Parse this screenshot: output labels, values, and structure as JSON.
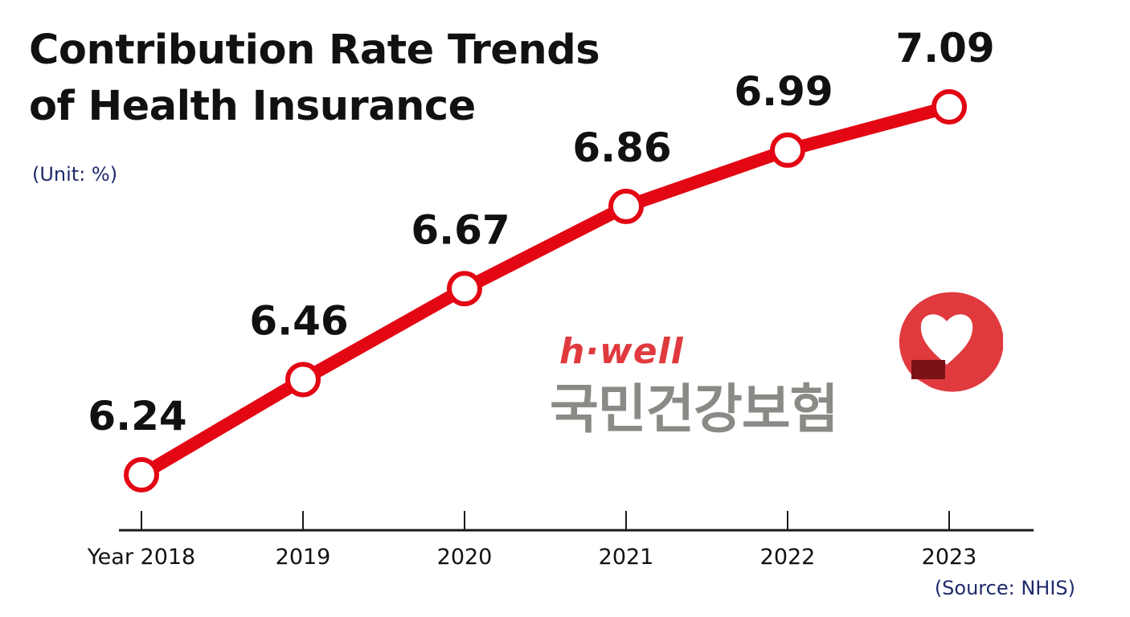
{
  "chart_data": {
    "type": "line",
    "title": [
      "Contribution Rate Trends",
      "of Health Insurance"
    ],
    "unit_label": "(Unit: %)",
    "source_label": "(Source: NHIS)",
    "categories": [
      "Year 2018",
      "2019",
      "2020",
      "2021",
      "2022",
      "2023"
    ],
    "series": [
      {
        "values": [
          6.24,
          6.46,
          6.67,
          6.86,
          6.99,
          7.09
        ],
        "labels": [
          "6.24",
          "6.46",
          "6.67",
          "6.86",
          "6.99",
          "7.09"
        ]
      }
    ],
    "line_color": "#e30613",
    "grid": false,
    "legend": "none"
  },
  "logo": {
    "wordmark": "h·well",
    "korean_name": "국민건강보험",
    "emblem_icon": "heart-speech-bubble-icon",
    "colors": {
      "red": "#e03a3e",
      "gray": "#8a8a86"
    }
  }
}
